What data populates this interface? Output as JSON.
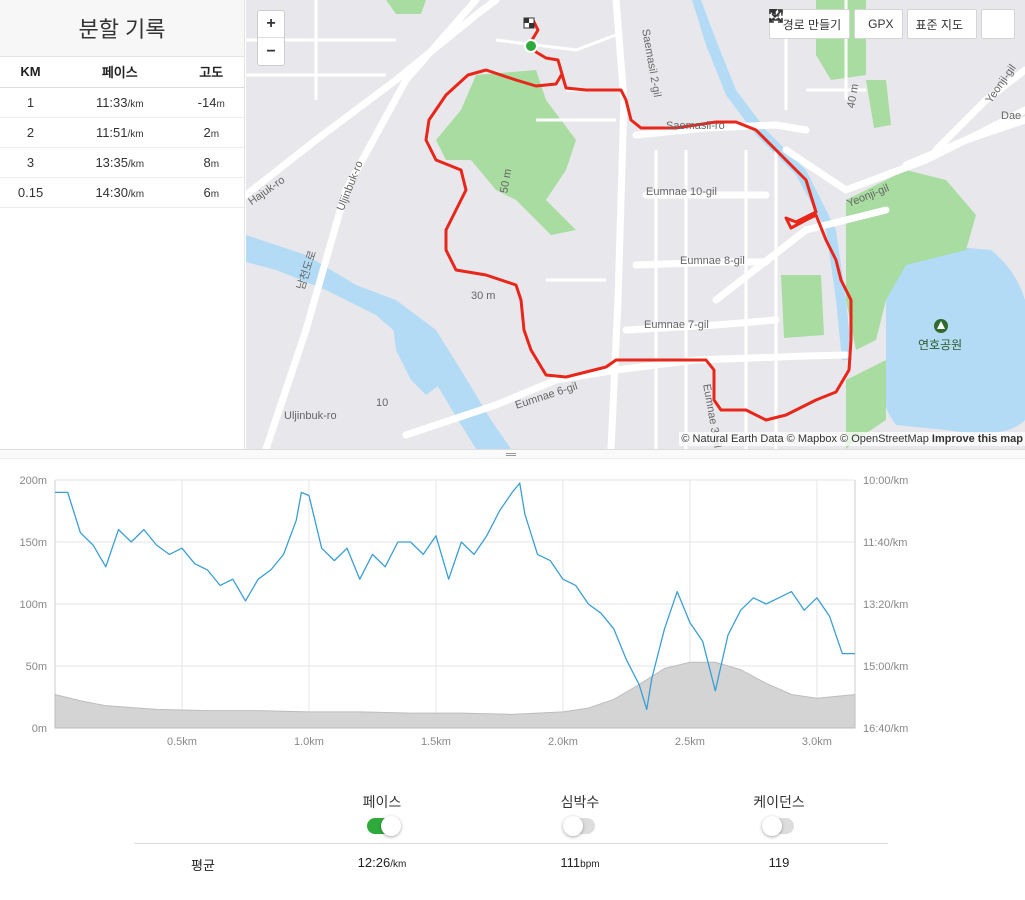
{
  "splits": {
    "title": "분할 기록",
    "headers": [
      "KM",
      "페이스",
      "고도"
    ],
    "rows": [
      {
        "km": "1",
        "pace": "11:33",
        "pace_unit": "/km",
        "elev": "-14",
        "elev_unit": "m"
      },
      {
        "km": "2",
        "pace": "11:51",
        "pace_unit": "/km",
        "elev": "2",
        "elev_unit": "m"
      },
      {
        "km": "3",
        "pace": "13:35",
        "pace_unit": "/km",
        "elev": "8",
        "elev_unit": "m"
      },
      {
        "km": "0.15",
        "pace": "14:30",
        "pace_unit": "/km",
        "elev": "6",
        "elev_unit": "m"
      }
    ]
  },
  "map": {
    "zoom_in": "+",
    "zoom_out": "−",
    "toolbar": {
      "route_label": "경로 만들기",
      "gpx_label": "GPX",
      "map_style_label": "표준 지도"
    },
    "attribution": {
      "natural_earth": "© Natural Earth Data",
      "mapbox": "© Mapbox",
      "osm": "© OpenStreetMap",
      "improve": "Improve this map"
    },
    "labels": {
      "saemasil2": "Saemasil 2-gil",
      "saemasil": "Saemasil-ro",
      "eumnae10": "Eumnae 10-gil",
      "eumnae8": "Eumnae 8-gil",
      "eumnae7": "Eumnae 7-gil",
      "eumnae6": "Eumnae 6-gil",
      "eumnae3": "Eumnae 3-gil",
      "yeonji": "Yeonji-gil",
      "yeonji2": "Yeonji-gil",
      "dae": "Dae",
      "uljinbuk": "Uljinbuk-ro",
      "uljinbuk2": "Uljinbuk-ro",
      "hajuk": "Hajuk-ro",
      "korean_road": "남천도로",
      "c50m": "50 m",
      "c30m": "30 m",
      "c10": "10",
      "c40": "40 m",
      "park": "연호공원"
    },
    "colors": {
      "route": "#e8261a",
      "water": "#b3dbf5",
      "park": "#a8dca0",
      "road": "#ffffff"
    }
  },
  "chart_data": {
    "type": "area",
    "title": "",
    "xlabel": "",
    "x_ticks": [
      "0.5km",
      "1.0km",
      "1.5km",
      "2.0km",
      "2.5km",
      "3.0km"
    ],
    "x_tick_values": [
      0.5,
      1.0,
      1.5,
      2.0,
      2.5,
      3.0
    ],
    "xlim": [
      0,
      3.15
    ],
    "y_left_ticks": [
      "0m",
      "50m",
      "100m",
      "150m",
      "200m"
    ],
    "y_left_lim": [
      0,
      200
    ],
    "y_right_ticks": [
      "10:00/km",
      "11:40/km",
      "13:20/km",
      "15:00/km",
      "16:40/km"
    ],
    "y_right_lim_sec": [
      600,
      1000
    ],
    "grid": true,
    "series": [
      {
        "name": "고도",
        "axis": "left",
        "color": "#d4d4d4",
        "x": [
          0,
          0.1,
          0.2,
          0.4,
          0.6,
          0.8,
          1.0,
          1.2,
          1.4,
          1.6,
          1.8,
          1.9,
          2.0,
          2.1,
          2.2,
          2.3,
          2.4,
          2.5,
          2.6,
          2.7,
          2.8,
          2.9,
          3.0,
          3.1,
          3.15
        ],
        "values": [
          27,
          22,
          18,
          15,
          14,
          14,
          13,
          13,
          12,
          12,
          11,
          12,
          13,
          16,
          23,
          35,
          48,
          53,
          53,
          47,
          36,
          27,
          24,
          26,
          27
        ]
      },
      {
        "name": "페이스",
        "axis": "right",
        "color": "#3a9fd6",
        "x": [
          0,
          0.05,
          0.1,
          0.15,
          0.2,
          0.25,
          0.3,
          0.35,
          0.4,
          0.45,
          0.5,
          0.55,
          0.6,
          0.65,
          0.7,
          0.75,
          0.8,
          0.85,
          0.9,
          0.95,
          0.97,
          1.0,
          1.05,
          1.1,
          1.15,
          1.2,
          1.25,
          1.3,
          1.35,
          1.4,
          1.45,
          1.5,
          1.55,
          1.6,
          1.65,
          1.7,
          1.75,
          1.8,
          1.83,
          1.85,
          1.9,
          1.95,
          2.0,
          2.05,
          2.1,
          2.15,
          2.2,
          2.25,
          2.3,
          2.33,
          2.35,
          2.4,
          2.45,
          2.5,
          2.55,
          2.6,
          2.65,
          2.7,
          2.75,
          2.8,
          2.85,
          2.9,
          2.95,
          3.0,
          3.05,
          3.1,
          3.15
        ],
        "values_sec": [
          620,
          620,
          685,
          705,
          740,
          680,
          700,
          680,
          705,
          720,
          710,
          735,
          745,
          770,
          760,
          795,
          760,
          745,
          720,
          665,
          620,
          625,
          710,
          730,
          710,
          760,
          720,
          740,
          700,
          700,
          720,
          690,
          760,
          700,
          720,
          690,
          650,
          620,
          605,
          655,
          720,
          730,
          760,
          770,
          800,
          815,
          840,
          890,
          930,
          970,
          920,
          840,
          780,
          830,
          860,
          940,
          850,
          810,
          790,
          800,
          790,
          780,
          810,
          790,
          820,
          880,
          880
        ]
      }
    ]
  },
  "stats": {
    "toggles": [
      {
        "label": "페이스",
        "on": true
      },
      {
        "label": "심박수",
        "on": false
      },
      {
        "label": "케이던스",
        "on": false
      }
    ],
    "avg_label": "평균",
    "pace": "12:26",
    "pace_unit": "/km",
    "hr": "111",
    "hr_unit": "bpm",
    "cadence": "119"
  }
}
